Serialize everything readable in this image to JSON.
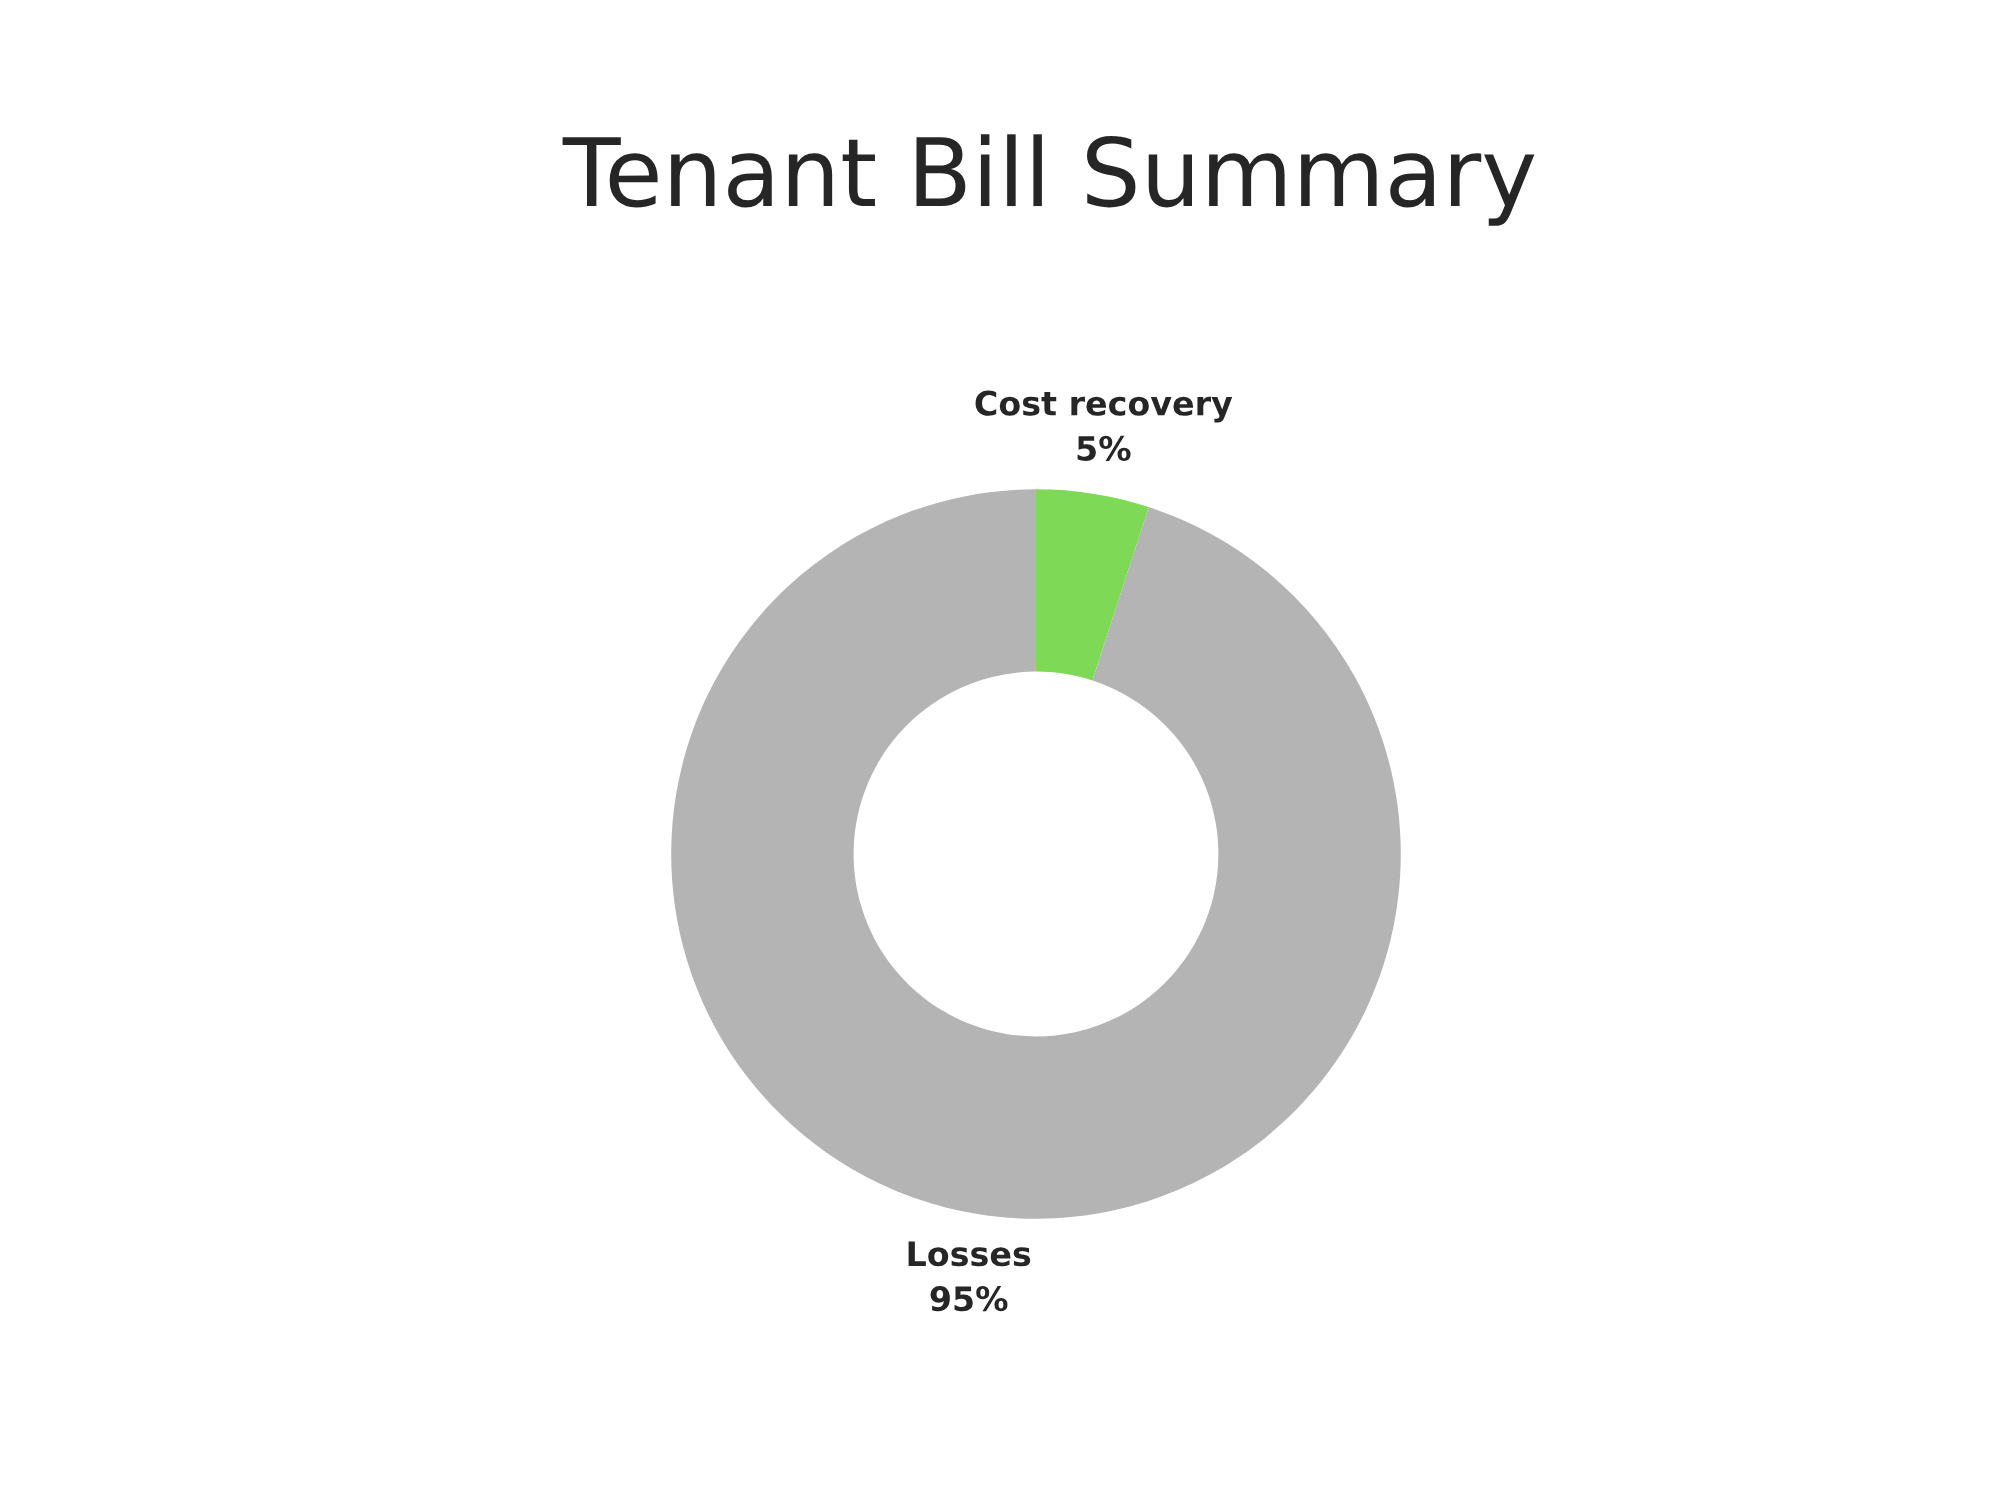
{
  "chart_data": {
    "type": "donut",
    "title": "Tenant Bill Summary",
    "categories": [
      "Cost recovery",
      "Losses"
    ],
    "values": [
      5,
      95
    ],
    "colors": [
      "#7ed957",
      "#b4b4b4"
    ],
    "value_labels": [
      "5%",
      "95%"
    ]
  }
}
